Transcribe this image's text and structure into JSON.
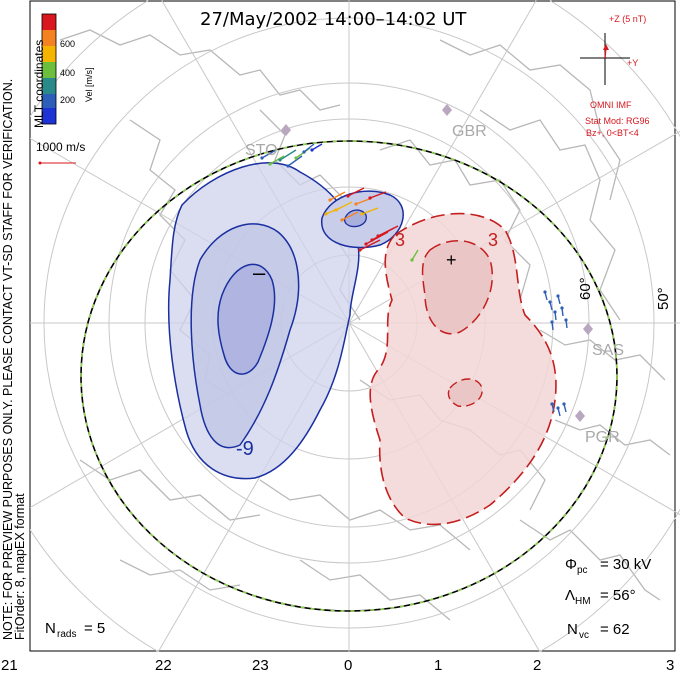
{
  "title": "27/May/2002 14:00–14:02 UT",
  "colorbar": {
    "label": "Vel [m/s]",
    "ticks": [
      "600",
      "400",
      "200"
    ],
    "colors": [
      "#d8171e",
      "#f58220",
      "#f4b400",
      "#6cbf3c",
      "#2a8a8a",
      "#2e5fb8",
      "#1e33d6"
    ]
  },
  "coords_label": "MLT coordinates",
  "vector_scale": "1000 m/s",
  "notes": {
    "preview": "NOTE: FOR PREVIEW PURPOSES ONLY. PLEASE CONTACT VT-SD STAFF FOR VERIFICATION.",
    "fit": "FitOrder: 8, mapEX format"
  },
  "imf": {
    "z_label": "+Z (5 nT)",
    "y_label": "+Y",
    "source": "OMNI IMF",
    "model": "Stat Mod: RG96",
    "condition": "Bz+, 0<BT<4"
  },
  "radars": [
    "GBR",
    "SAS",
    "PGR",
    "STO"
  ],
  "lat_labels": [
    "60°",
    "50°"
  ],
  "potential_signs": {
    "minus": "–",
    "plus": "+"
  },
  "contour_labels": [
    "-9",
    "3",
    "3"
  ],
  "stats": {
    "phi_pc": {
      "symbol": "Φ",
      "sub": "pc",
      "value": "= 30 kV"
    },
    "lambda_hm": {
      "symbol": "Λ",
      "sub": "HM",
      "value": "= 56°"
    },
    "n_vc": {
      "symbol": "N",
      "sub": "vc",
      "value": "= 62"
    },
    "n_rads": {
      "symbol": "N",
      "sub": "rads",
      "value": "= 5"
    }
  },
  "mlt_ticks": [
    "21",
    "22",
    "23",
    "0",
    "1",
    "2",
    "3"
  ]
}
